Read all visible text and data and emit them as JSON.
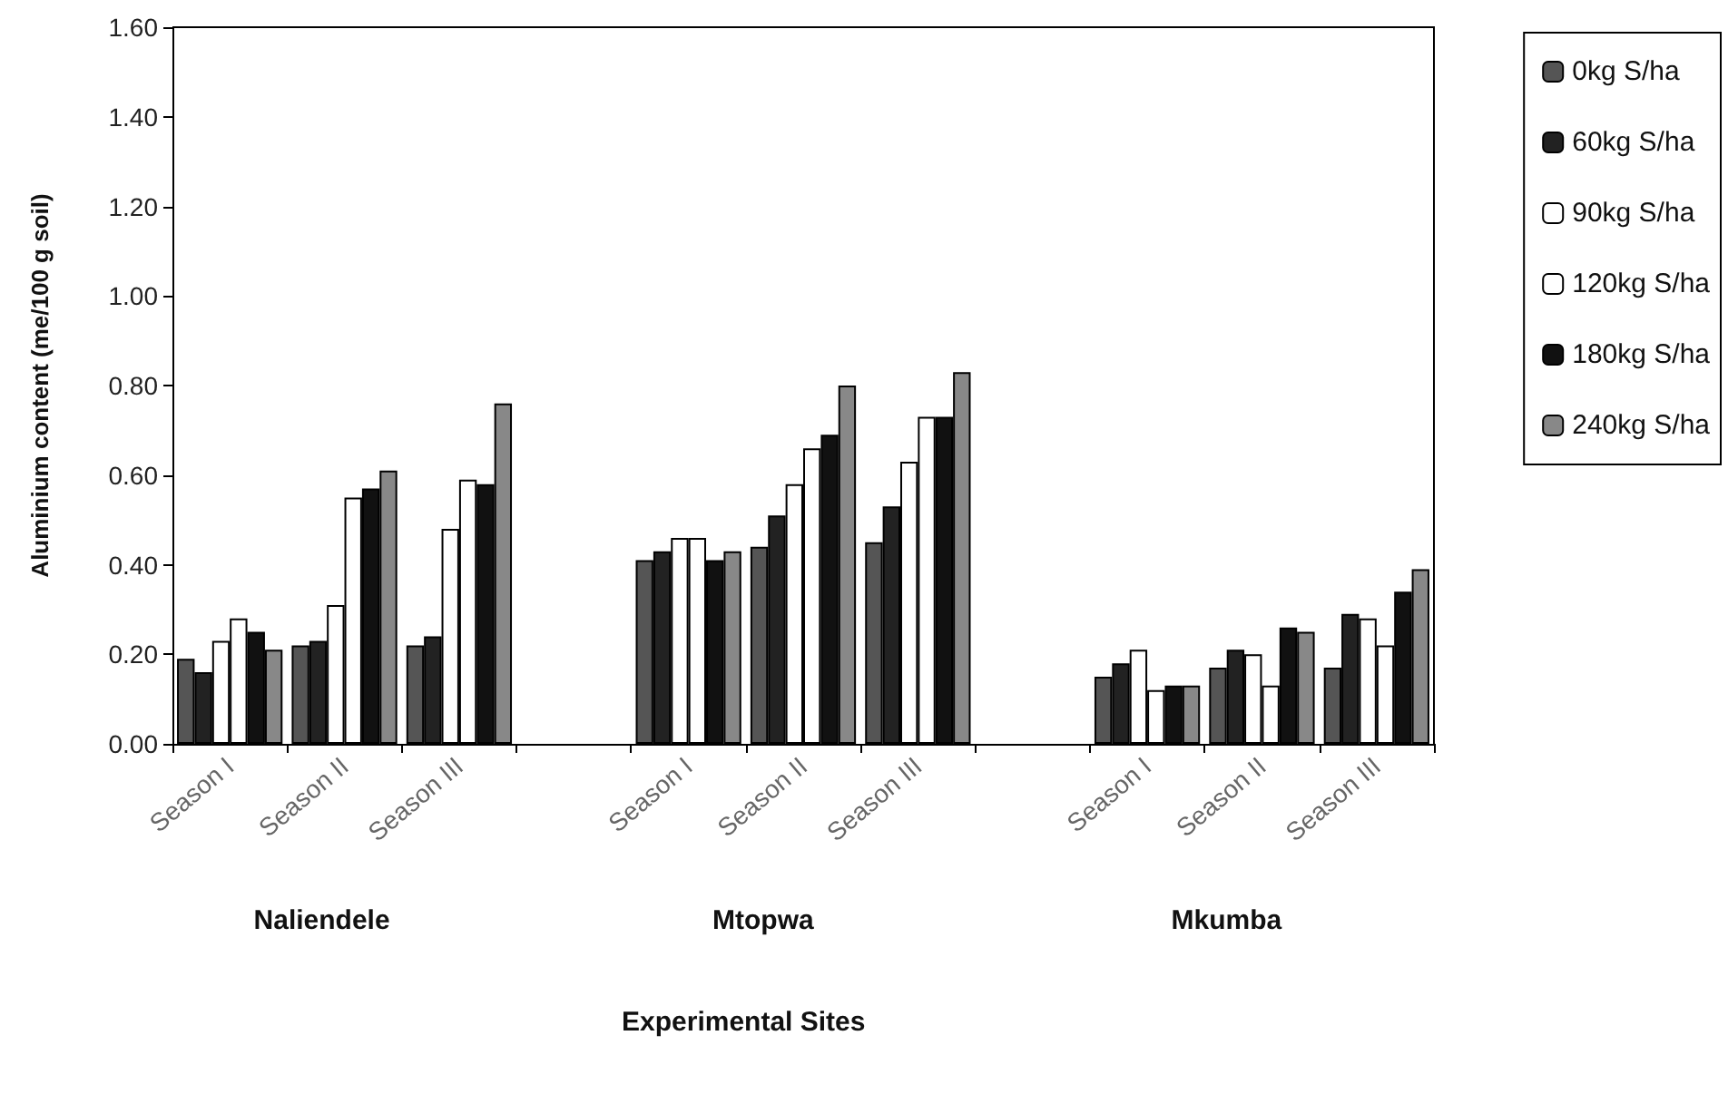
{
  "chart_data": {
    "type": "bar",
    "ylabel": "Aluminium content (me/100 g soil)",
    "categories": [
      "Season I",
      "Season II",
      "Season III",
      null,
      "Season I",
      "Season II",
      "Season III",
      null,
      "Season I",
      "Season II",
      "Season III"
    ],
    "series": [
      {
        "name": "0kg S/ha",
        "color": "#555555",
        "values": [
          0.19,
          0.22,
          0.22,
          null,
          0.41,
          0.44,
          0.45,
          null,
          0.15,
          0.17,
          0.17
        ]
      },
      {
        "name": "60kg S/ha",
        "color": "#222222",
        "values": [
          0.16,
          0.23,
          0.24,
          null,
          0.43,
          0.51,
          0.53,
          null,
          0.18,
          0.21,
          0.29
        ]
      },
      {
        "name": "90kg S/ha",
        "color": "#ffffff",
        "values": [
          0.23,
          0.31,
          0.48,
          null,
          0.46,
          0.58,
          0.63,
          null,
          0.21,
          0.2,
          0.28
        ]
      },
      {
        "name": "120kg S/ha",
        "color": "#ffffff",
        "values": [
          0.28,
          0.55,
          0.59,
          null,
          0.46,
          0.66,
          0.73,
          null,
          0.12,
          0.13,
          0.22
        ]
      },
      {
        "name": "180kg S/ha",
        "color": "#111111",
        "values": [
          0.25,
          0.57,
          0.58,
          null,
          0.41,
          0.69,
          0.73,
          null,
          0.13,
          0.26,
          0.34
        ]
      },
      {
        "name": "240kg S/ha",
        "color": "#888888",
        "values": [
          0.21,
          0.61,
          0.76,
          null,
          0.43,
          0.8,
          0.83,
          null,
          0.13,
          0.25,
          0.39
        ]
      }
    ],
    "annotations": [
      "Naliendele",
      "Mtopwa",
      "Mkumba",
      "Experimental Sites"
    ],
    "ylim": [
      0,
      1.6
    ],
    "yticks": [
      {
        "value": 0,
        "label": "0.00"
      },
      {
        "value": 0.2,
        "label": "0.20"
      },
      {
        "value": 0.4,
        "label": "0.40"
      },
      {
        "value": 0.6,
        "label": "0.60"
      },
      {
        "value": 0.8,
        "label": "0.80"
      },
      {
        "value": 1.0,
        "label": "1.00"
      },
      {
        "value": 1.2,
        "label": "1.20"
      },
      {
        "value": 1.4,
        "label": "1.40"
      },
      {
        "value": 1.6,
        "label": "1.60"
      }
    ],
    "grid": false,
    "legend": "right"
  }
}
